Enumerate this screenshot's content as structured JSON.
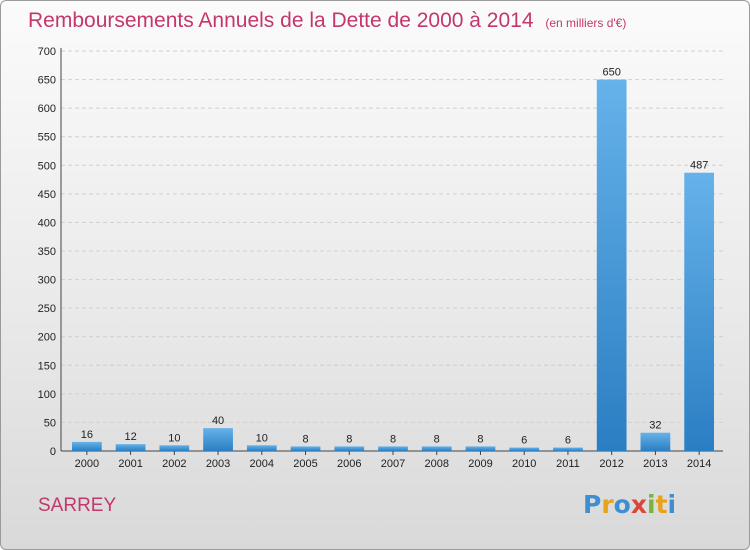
{
  "colors": {
    "title": "#c4376c",
    "place": "#c4376c",
    "bar_light": "#66b2ea",
    "bar_dark": "#2a7ec2",
    "grid": "#cfcfcf",
    "axis": "#444444"
  },
  "place_name": "SARREY",
  "logo": {
    "text": "Proxiti",
    "letters": [
      {
        "ch": "P",
        "color": "#3d8fd1"
      },
      {
        "ch": "r",
        "color": "#e8a21c"
      },
      {
        "ch": "o",
        "color": "#3d8fd1"
      },
      {
        "ch": "x",
        "color": "#d9473a"
      },
      {
        "ch": "i",
        "color": "#7ab43a"
      },
      {
        "ch": "t",
        "color": "#e8a21c"
      },
      {
        "ch": "i",
        "color": "#3d8fd1"
      }
    ]
  },
  "chart_data": {
    "type": "bar",
    "title": "Remboursements Annuels de la Dette de 2000 à 2014",
    "subtitle": "(en milliers d'€)",
    "xlabel": "",
    "ylabel": "",
    "categories": [
      "2000",
      "2001",
      "2002",
      "2003",
      "2004",
      "2005",
      "2006",
      "2007",
      "2008",
      "2009",
      "2010",
      "2011",
      "2012",
      "2013",
      "2014"
    ],
    "values": [
      16,
      12,
      10,
      40,
      10,
      8,
      8,
      8,
      8,
      8,
      6,
      6,
      650,
      32,
      487
    ],
    "ylim": [
      0,
      700
    ],
    "yticks": [
      "0",
      "50",
      "100",
      "150",
      "200",
      "250",
      "300",
      "350",
      "400",
      "450",
      "500",
      "550",
      "600",
      "650",
      "700"
    ],
    "grid": true,
    "legend": "none"
  }
}
